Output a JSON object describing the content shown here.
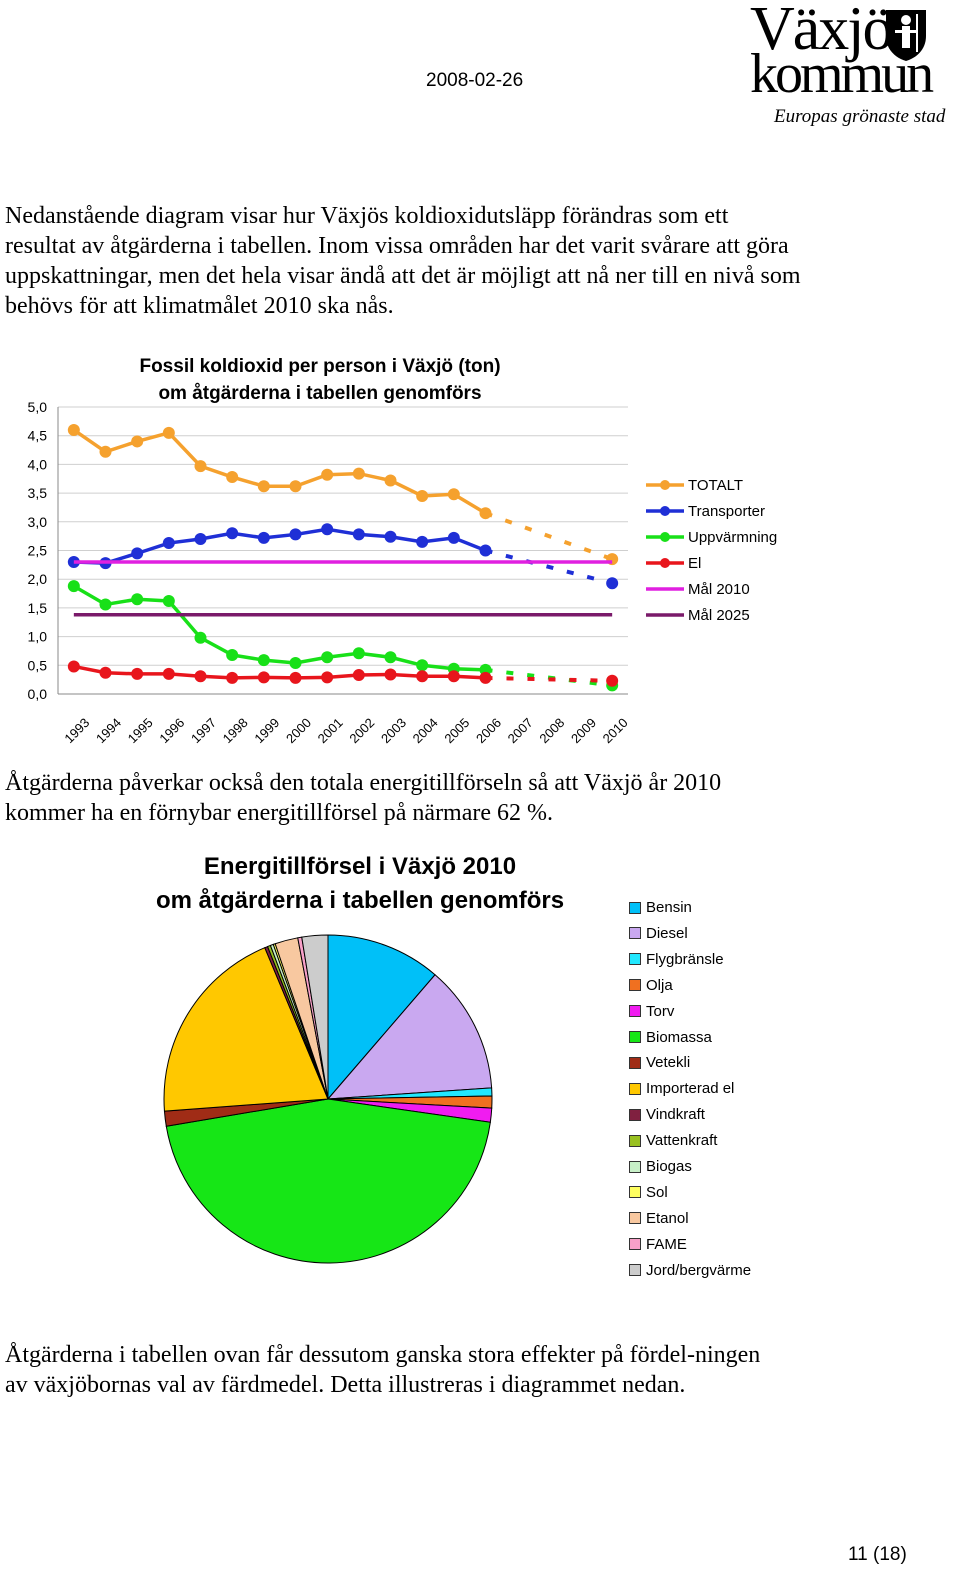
{
  "header": {
    "date": "2008-02-26"
  },
  "logo": {
    "line1": "Växjö",
    "line2": "kommun",
    "tagline": "Europas grönaste stad"
  },
  "paragraphs": [
    "Nedanstående diagram visar hur Växjös koldioxidutsläpp förändras som ett resultat av åtgärderna i tabellen. Inom vissa områden har det varit svårare att göra uppskattningar, men det hela visar ändå att det är möjligt att nå ner till en nivå som behövs för att klimatmålet 2010 ska nås.",
    "Åtgärderna påverkar också den totala energitillförseln så att Växjö år 2010 kommer ha en förnybar energitillförsel på närmare 62 %.",
    "Åtgärderna i tabellen ovan får dessutom ganska stora effekter på fördel-ningen av växjöbornas val av färdmedel. Detta illustreras i diagrammet nedan."
  ],
  "page_number": "11 (18)",
  "chart_data": [
    {
      "type": "line",
      "title_line1": "Fossil koldioxid per person i Växjö (ton)",
      "title_line2": "om åtgärderna i tabellen genomförs",
      "x": [
        "1993",
        "1994",
        "1995",
        "1996",
        "1997",
        "1998",
        "1999",
        "2000",
        "2001",
        "2002",
        "2003",
        "2004",
        "2005",
        "2006",
        "2007",
        "2008",
        "2009",
        "2010"
      ],
      "ylim": [
        0,
        5
      ],
      "yticks": [
        "0,0",
        "0,5",
        "1,0",
        "1,5",
        "2,0",
        "2,5",
        "3,0",
        "3,5",
        "4,0",
        "4,5",
        "5,0"
      ],
      "grid": true,
      "legend_position": "right",
      "series": [
        {
          "name": "TOTALT",
          "color": "#f5a12e",
          "values": [
            4.6,
            4.22,
            4.4,
            4.55,
            3.97,
            3.78,
            3.62,
            3.62,
            3.82,
            3.84,
            3.72,
            3.45,
            3.48,
            3.15,
            null,
            null,
            null,
            2.35
          ]
        },
        {
          "name": "Transporter",
          "color": "#1f2fd6",
          "values": [
            2.3,
            2.28,
            2.45,
            2.63,
            2.7,
            2.8,
            2.72,
            2.78,
            2.87,
            2.78,
            2.74,
            2.65,
            2.72,
            2.5,
            null,
            null,
            null,
            1.93
          ]
        },
        {
          "name": "Uppvärmning",
          "color": "#18e018",
          "values": [
            1.88,
            1.56,
            1.65,
            1.62,
            0.98,
            0.68,
            0.59,
            0.54,
            0.64,
            0.71,
            0.64,
            0.5,
            0.44,
            0.42,
            null,
            null,
            null,
            0.15
          ]
        },
        {
          "name": "El",
          "color": "#e8151c",
          "values": [
            0.48,
            0.37,
            0.35,
            0.35,
            0.31,
            0.28,
            0.29,
            0.28,
            0.29,
            0.33,
            0.34,
            0.31,
            0.31,
            0.28,
            null,
            null,
            null,
            0.23
          ]
        },
        {
          "name": "Mål 2010",
          "color": "#e020e0",
          "values": [
            2.3,
            2.3,
            2.3,
            2.3,
            2.3,
            2.3,
            2.3,
            2.3,
            2.3,
            2.3,
            2.3,
            2.3,
            2.3,
            2.3,
            2.3,
            2.3,
            2.3,
            2.3
          ]
        },
        {
          "name": "Mål 2025",
          "color": "#7a1a6a",
          "values": [
            1.38,
            1.38,
            1.38,
            1.38,
            1.38,
            1.38,
            1.38,
            1.38,
            1.38,
            1.38,
            1.38,
            1.38,
            1.38,
            1.38,
            1.38,
            1.38,
            1.38,
            1.38
          ]
        }
      ]
    },
    {
      "type": "pie",
      "title_line1": "Energitillförsel i Växjö 2010",
      "title_line2": "om åtgärderna i tabellen genomförs",
      "legend_position": "right",
      "slices": [
        {
          "name": "Bensin",
          "color": "#00c0f8",
          "value": 11.5
        },
        {
          "name": "Diesel",
          "color": "#c9a8f0",
          "value": 12.8
        },
        {
          "name": "Flygbränsle",
          "color": "#22e8ff",
          "value": 0.8
        },
        {
          "name": "Olja",
          "color": "#f07020",
          "value": 1.2
        },
        {
          "name": "Torv",
          "color": "#f01cf0",
          "value": 1.4
        },
        {
          "name": "Biomassa",
          "color": "#16e616",
          "value": 45.8
        },
        {
          "name": "Vetekli",
          "color": "#a02c16",
          "value": 1.5
        },
        {
          "name": "Importerad el",
          "color": "#ffc800",
          "value": 20.2
        },
        {
          "name": "Vindkraft",
          "color": "#802040",
          "value": 0.3
        },
        {
          "name": "Vattenkraft",
          "color": "#98c020",
          "value": 0.3
        },
        {
          "name": "Biogas",
          "color": "#c8f0c8",
          "value": 0.3
        },
        {
          "name": "Sol",
          "color": "#ffff60",
          "value": 0.2
        },
        {
          "name": "Etanol",
          "color": "#f8c8a0",
          "value": 2.3
        },
        {
          "name": "FAME",
          "color": "#f8a0c8",
          "value": 0.4
        },
        {
          "name": "Jord/bergvärme",
          "color": "#cccccc",
          "value": 2.6
        }
      ]
    }
  ]
}
